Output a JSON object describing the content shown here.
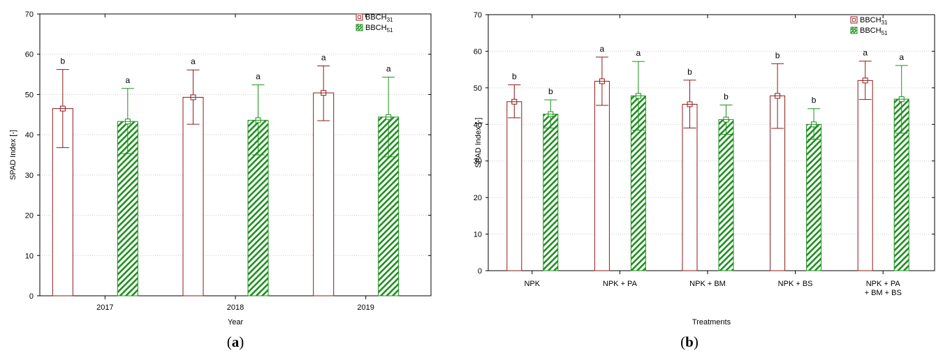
{
  "colors": {
    "bbch31": "#8b1a1a",
    "bbch51": "#1d8f1d",
    "grid": "#c9c9c9"
  },
  "chart_data": [
    {
      "type": "bar",
      "panel_label": "a",
      "xlabel": "Year",
      "ylabel": "SPAD Index [-]",
      "ylim": [
        0,
        70
      ],
      "yticks": [
        0,
        10,
        20,
        30,
        40,
        50,
        60,
        70
      ],
      "grid": true,
      "legend_position": "top-right",
      "categories": [
        "2017",
        "2018",
        "2019"
      ],
      "series": [
        {
          "key": "bbch31",
          "name": "BBCH",
          "name_sub": "31",
          "values": [
            46.5,
            49.3,
            50.4
          ],
          "error_low": [
            36.8,
            42.6,
            43.5
          ],
          "error_high": [
            56.2,
            56.1,
            57.1
          ],
          "letters": [
            "b",
            "a",
            "a"
          ]
        },
        {
          "key": "bbch51",
          "name": "BBCH",
          "name_sub": "51",
          "values": [
            43.3,
            43.6,
            44.4
          ],
          "error_low": [
            35.3,
            35.0,
            34.5
          ],
          "error_high": [
            51.5,
            52.4,
            54.3
          ],
          "letters": [
            "a",
            "a",
            "a"
          ]
        }
      ]
    },
    {
      "type": "bar",
      "panel_label": "b",
      "xlabel": "Treatments",
      "ylabel": "SPAD Index [-]",
      "ylim": [
        0,
        70
      ],
      "yticks": [
        0,
        10,
        20,
        30,
        40,
        50,
        60,
        70
      ],
      "grid": true,
      "legend_position": "top-right",
      "categories": [
        "NPK",
        "NPK + PA",
        "NPK + BM",
        "NPK + BS",
        "NPK + PA\n+ BM + BS"
      ],
      "series": [
        {
          "key": "bbch31",
          "name": "BBCH",
          "name_sub": "31",
          "values": [
            46.2,
            51.8,
            45.5,
            47.8,
            52.0
          ],
          "error_low": [
            41.8,
            45.2,
            39.0,
            38.9,
            46.8
          ],
          "error_high": [
            50.8,
            58.4,
            52.1,
            56.6,
            57.3
          ],
          "letters": [
            "b",
            "a",
            "b",
            "b",
            "a"
          ]
        },
        {
          "key": "bbch51",
          "name": "BBCH",
          "name_sub": "51",
          "values": [
            42.8,
            47.8,
            41.3,
            40.0,
            46.9
          ],
          "error_low": [
            39.0,
            38.4,
            37.3,
            35.9,
            37.6
          ],
          "error_high": [
            46.7,
            57.2,
            45.3,
            44.3,
            56.1
          ],
          "letters": [
            "b",
            "a",
            "b",
            "b",
            "a"
          ]
        }
      ]
    }
  ]
}
